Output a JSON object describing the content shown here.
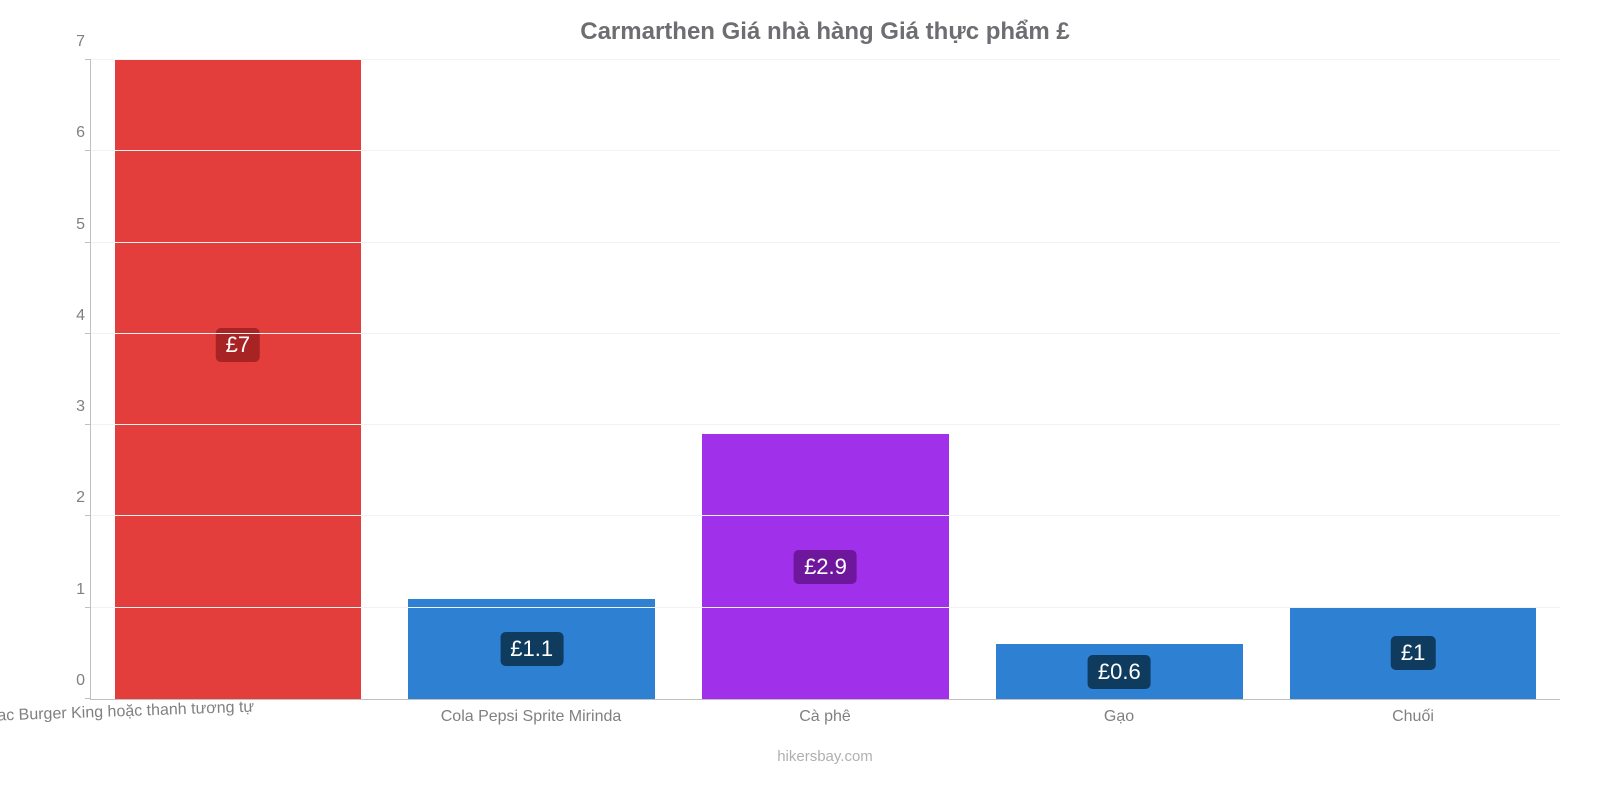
{
  "chart": {
    "type": "bar",
    "title": "Carmarthen Giá nhà hàng Giá thực phẩm £",
    "title_fontsize": 24,
    "title_color": "#6d6e71",
    "background_color": "#ffffff",
    "grid_color": "#f2f2f2",
    "axis_color": "#c0c0c0",
    "tick_label_color": "#808080",
    "tick_label_fontsize": 16,
    "ylim": [
      0,
      7
    ],
    "ytick_step": 1,
    "yticks": [
      0,
      1,
      2,
      3,
      4,
      5,
      6,
      7
    ],
    "bar_width_pct": 84,
    "categories": [
      "Mac Burger King hoặc thanh tương tự",
      "Cola Pepsi Sprite Mirinda",
      "Cà phê",
      "Gạo",
      "Chuối"
    ],
    "x_label_rotate_first": true,
    "values": [
      7.0,
      1.1,
      2.9,
      0.6,
      1.0
    ],
    "value_labels": [
      "£7",
      "£1.1",
      "£2.9",
      "£0.6",
      "£1"
    ],
    "bar_colors": [
      "#e33e3b",
      "#2d80d2",
      "#a130eb",
      "#2d80d2",
      "#2d80d2"
    ],
    "badge_colors": [
      "#a82424",
      "#0f3b5f",
      "#6e169c",
      "#0f3b5f",
      "#0f3b5f"
    ],
    "badge_text_color": "#ffffff",
    "badge_fontsize": 22,
    "attribution": "hikersbay.com",
    "attribution_color": "#b0b0b0",
    "attribution_fontsize": 15
  }
}
